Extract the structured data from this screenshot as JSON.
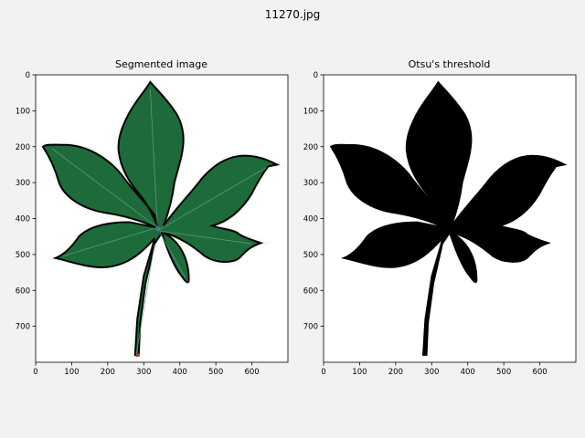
{
  "figure": {
    "suptitle": "11270.jpg",
    "background": "#f2f2f2"
  },
  "panels": [
    {
      "title": "Segmented image",
      "leaf_fill": "#1d6b3a",
      "leaf_outline": "#000000",
      "x_ticks": [
        "0",
        "100",
        "200",
        "300",
        "400",
        "500",
        "600"
      ],
      "y_ticks": [
        "0",
        "100",
        "200",
        "300",
        "400",
        "500",
        "600",
        "700"
      ]
    },
    {
      "title": "Otsu's threshold",
      "leaf_fill": "#000000",
      "leaf_outline": "#000000",
      "x_ticks": [
        "0",
        "100",
        "200",
        "300",
        "400",
        "500",
        "600"
      ],
      "y_ticks": [
        "0",
        "100",
        "200",
        "300",
        "400",
        "500",
        "600",
        "700"
      ]
    }
  ],
  "image_extent": {
    "width": 700,
    "height": 800
  }
}
